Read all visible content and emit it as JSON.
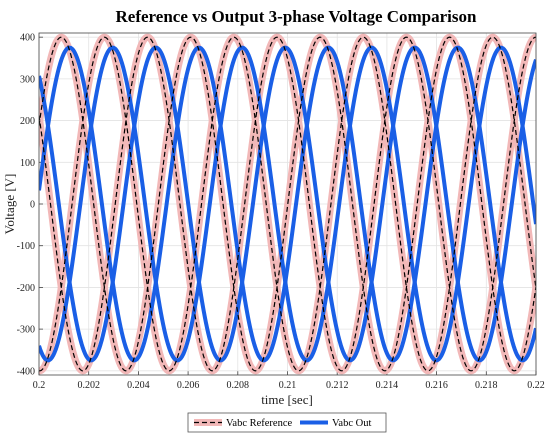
{
  "chart_data": {
    "type": "line",
    "title": "Reference vs Output 3-phase Voltage Comparison",
    "xlabel": "time [sec]",
    "ylabel": "Voltage [V]",
    "xlim": [
      0.2,
      0.22
    ],
    "ylim": [
      -410,
      410
    ],
    "xticks": [
      0.2,
      0.202,
      0.204,
      0.206,
      0.208,
      0.21,
      0.212,
      0.214,
      0.216,
      0.218,
      0.22
    ],
    "xtick_labels": [
      "0.2",
      "0.202",
      "0.204",
      "0.206",
      "0.208",
      "0.21",
      "0.212",
      "0.214",
      "0.216",
      "0.218",
      "0.22"
    ],
    "yticks": [
      -400,
      -300,
      -200,
      -100,
      0,
      100,
      200,
      300,
      400
    ],
    "ytick_labels": [
      "-400",
      "-300",
      "-200",
      "-100",
      "0",
      "100",
      "200",
      "300",
      "400"
    ],
    "grid": true,
    "legend_position": "bottom-center",
    "frequency_hz": 192,
    "series": [
      {
        "name": "Vabc Reference",
        "style": "dashed-with-halo",
        "color": "#000000",
        "halo_color": "#f2b8b8",
        "amplitude": 400,
        "phases_deg": [
          28,
          148,
          268
        ]
      },
      {
        "name": "Vabc Out",
        "style": "solid",
        "color": "#1a5fe6",
        "amplitude": 375,
        "phases_deg": [
          5,
          125,
          245
        ]
      }
    ]
  }
}
